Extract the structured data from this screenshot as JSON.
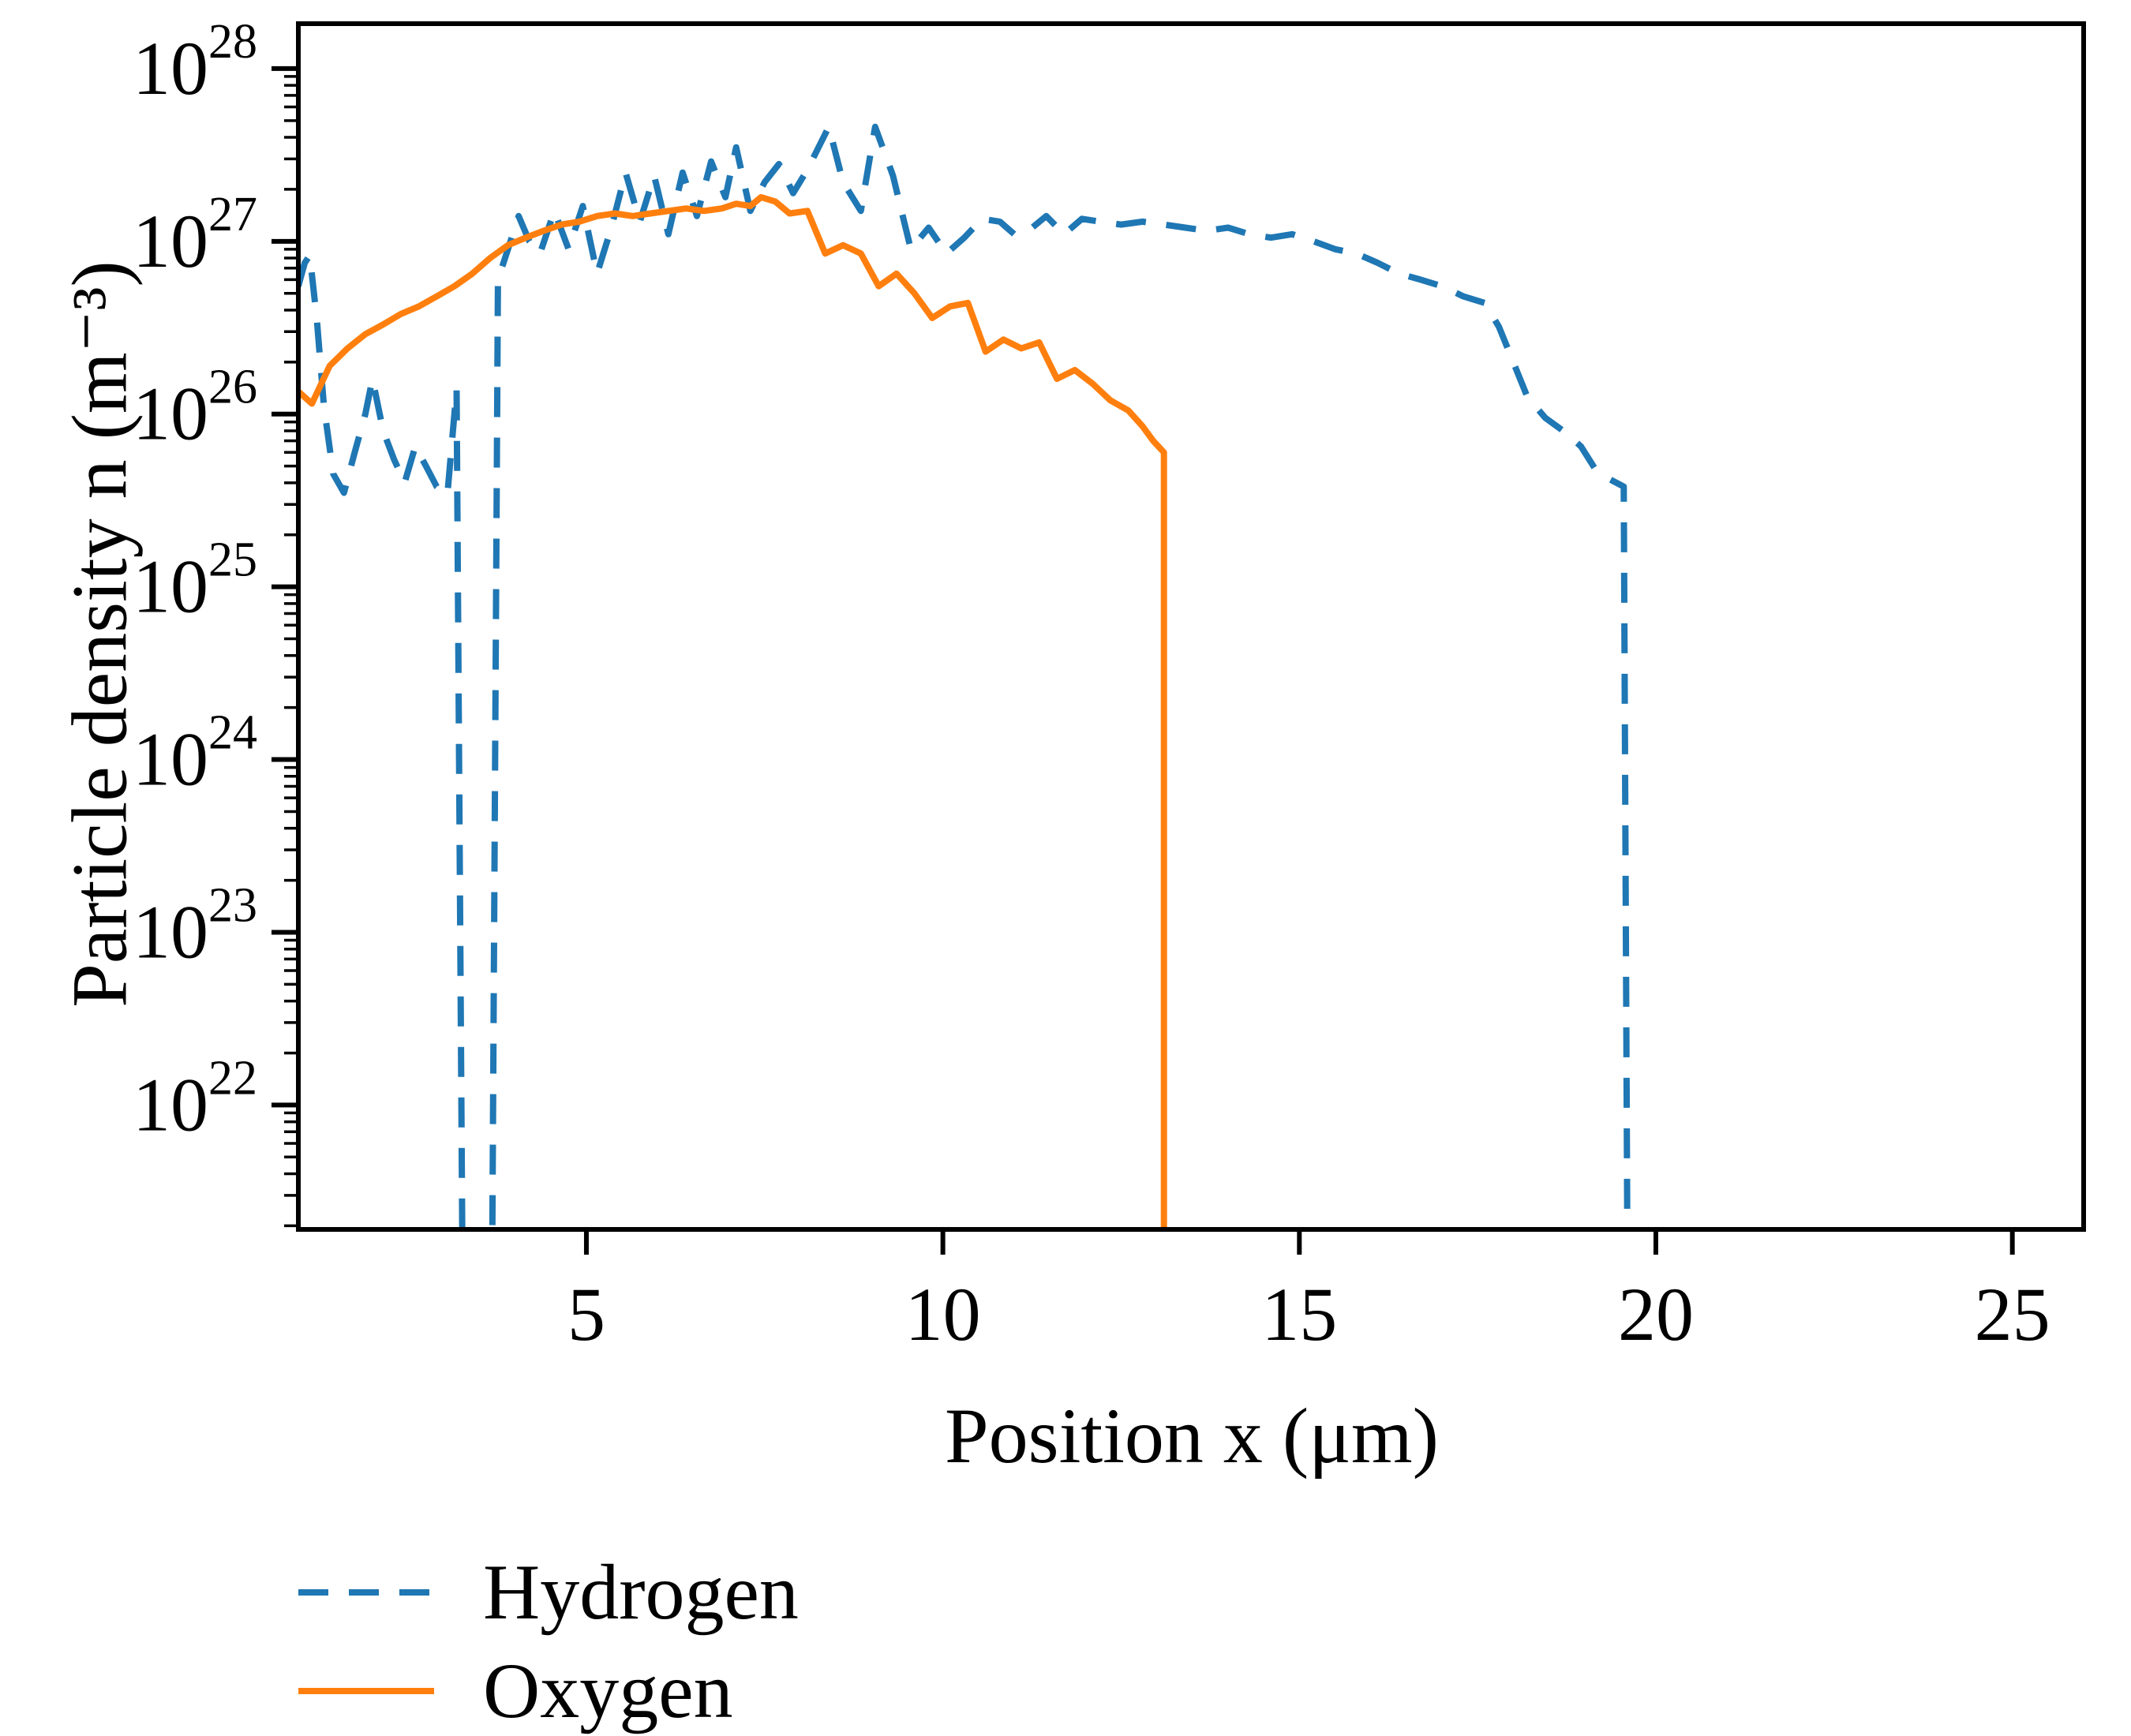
{
  "chart_data": {
    "type": "line",
    "title": "",
    "xlabel": "Position x (μm)",
    "ylabel": "Particle density n (m⁻³)",
    "x_scale": "linear",
    "y_scale": "log",
    "grid": false,
    "legend_position": "below-left",
    "xlim": [
      0.96,
      26.0
    ],
    "ylim_log10": [
      21.28,
      28.26
    ],
    "x_ticks": [
      5,
      10,
      15,
      20,
      25
    ],
    "y_tick_exponents": [
      22,
      23,
      24,
      25,
      26,
      27,
      28
    ],
    "series": [
      {
        "name": "Hydrogen",
        "color": "#1f77b4",
        "style": "dashed",
        "x": [
          0.96,
          1.05,
          1.12,
          1.22,
          1.32,
          1.45,
          1.6,
          1.75,
          1.9,
          2.0,
          2.15,
          2.3,
          2.45,
          2.6,
          2.75,
          2.9,
          3.05,
          3.18,
          3.26,
          3.45,
          3.68,
          3.76,
          3.9,
          4.05,
          4.2,
          4.35,
          4.55,
          4.75,
          4.95,
          5.15,
          5.35,
          5.55,
          5.75,
          5.95,
          6.15,
          6.35,
          6.55,
          6.75,
          6.95,
          7.1,
          7.3,
          7.5,
          7.7,
          7.9,
          8.1,
          8.4,
          8.6,
          8.85,
          9.05,
          9.3,
          9.55,
          9.8,
          10.05,
          10.3,
          10.55,
          10.8,
          11.0,
          11.2,
          11.45,
          11.7,
          11.95,
          12.2,
          12.5,
          12.8,
          13.1,
          13.4,
          13.7,
          14.0,
          14.3,
          14.6,
          14.9,
          15.2,
          15.5,
          15.8,
          16.1,
          16.4,
          16.7,
          17.0,
          17.3,
          17.6,
          17.8,
          18.0,
          18.2,
          18.45,
          18.7,
          18.95,
          19.15,
          19.35,
          19.55,
          19.6
        ],
        "y": [
          5.5e+26,
          7.5e+26,
          8.3e+26,
          3.5e+26,
          1.1e+26,
          4.5e+25,
          3.5e+25,
          6e+25,
          1e+26,
          1.6e+26,
          8e+25,
          5.5e+25,
          4e+25,
          6.5e+25,
          5e+25,
          3.8e+25,
          3.4e+25,
          1.4e+26,
          1.5e+21,
          1.5e+21,
          1.5e+21,
          6e+26,
          9e+26,
          1.4e+27,
          1e+27,
          8.5e+26,
          1.5e+27,
          9e+26,
          1.6e+27,
          6.5e+26,
          1.2e+27,
          2.5e+27,
          1.3e+27,
          2.4e+27,
          1.1e+27,
          2.5e+27,
          1.4e+27,
          2.9e+27,
          1.8e+27,
          3.5e+27,
          1.5e+27,
          2.2e+27,
          2.8e+27,
          1.9e+27,
          2.6e+27,
          4.6e+27,
          2.2e+27,
          1.5e+27,
          4.6e+27,
          2.4e+27,
          9e+26,
          1.2e+27,
          8.5e+26,
          1.05e+27,
          1.35e+27,
          1.3e+27,
          1.1e+27,
          1.15e+27,
          1.4e+27,
          1.1e+27,
          1.35e+27,
          1.3e+27,
          1.25e+27,
          1.3e+27,
          1.25e+27,
          1.2e+27,
          1.15e+27,
          1.2e+27,
          1.1e+27,
          1.05e+27,
          1.1e+27,
          1e+27,
          9e+26,
          8.5e+26,
          7.5e+26,
          6.5e+26,
          6e+26,
          5.5e+26,
          4.8e+26,
          4.4e+26,
          3.2e+26,
          2e+26,
          1.25e+26,
          9.5e+25,
          8e+25,
          6.5e+25,
          4.8e+25,
          4.2e+25,
          3.8e+25,
          1.5e+21
        ]
      },
      {
        "name": "Oxygen",
        "color": "#ff7f0e",
        "style": "solid",
        "x": [
          0.96,
          1.15,
          1.4,
          1.65,
          1.9,
          2.15,
          2.4,
          2.65,
          2.9,
          3.15,
          3.4,
          3.65,
          3.9,
          4.15,
          4.4,
          4.65,
          4.9,
          5.15,
          5.4,
          5.65,
          5.9,
          6.15,
          6.4,
          6.65,
          6.9,
          7.1,
          7.3,
          7.45,
          7.65,
          7.85,
          8.1,
          8.35,
          8.6,
          8.85,
          9.1,
          9.35,
          9.6,
          9.85,
          10.1,
          10.35,
          10.6,
          10.85,
          11.1,
          11.35,
          11.6,
          11.85,
          12.1,
          12.35,
          12.6,
          12.8,
          12.95,
          13.1,
          13.1
        ],
        "y": [
          1.35e+26,
          1.15e+26,
          1.9e+26,
          2.4e+26,
          2.9e+26,
          3.3e+26,
          3.8e+26,
          4.2e+26,
          4.8e+26,
          5.5e+26,
          6.5e+26,
          8e+26,
          9.5e+26,
          1.05e+27,
          1.15e+27,
          1.25e+27,
          1.3e+27,
          1.4e+27,
          1.45e+27,
          1.4e+27,
          1.45e+27,
          1.5e+27,
          1.55e+27,
          1.5e+27,
          1.55e+27,
          1.65e+27,
          1.6e+27,
          1.8e+27,
          1.7e+27,
          1.45e+27,
          1.5e+27,
          8.5e+26,
          9.5e+26,
          8.5e+26,
          5.5e+26,
          6.5e+26,
          5e+26,
          3.6e+26,
          4.2e+26,
          4.4e+26,
          2.3e+26,
          2.7e+26,
          2.4e+26,
          2.6e+26,
          1.6e+26,
          1.8e+26,
          1.5e+26,
          1.2e+26,
          1.05e+26,
          8.5e+25,
          7e+25,
          6e+25,
          1.5e+21
        ]
      }
    ]
  },
  "axes": {
    "xlabel": "Position x (μm)",
    "ylabel": "Particle density n (m⁻³)",
    "y_tick_base": "10"
  },
  "legend": {
    "items": [
      {
        "label": "Hydrogen",
        "color": "#1f77b4",
        "style": "dashed"
      },
      {
        "label": "Oxygen",
        "color": "#ff7f0e",
        "style": "solid"
      }
    ]
  },
  "colors": {
    "hydrogen": "#1f77b4",
    "oxygen": "#ff7f0e",
    "axis": "#000000",
    "background": "#ffffff"
  }
}
